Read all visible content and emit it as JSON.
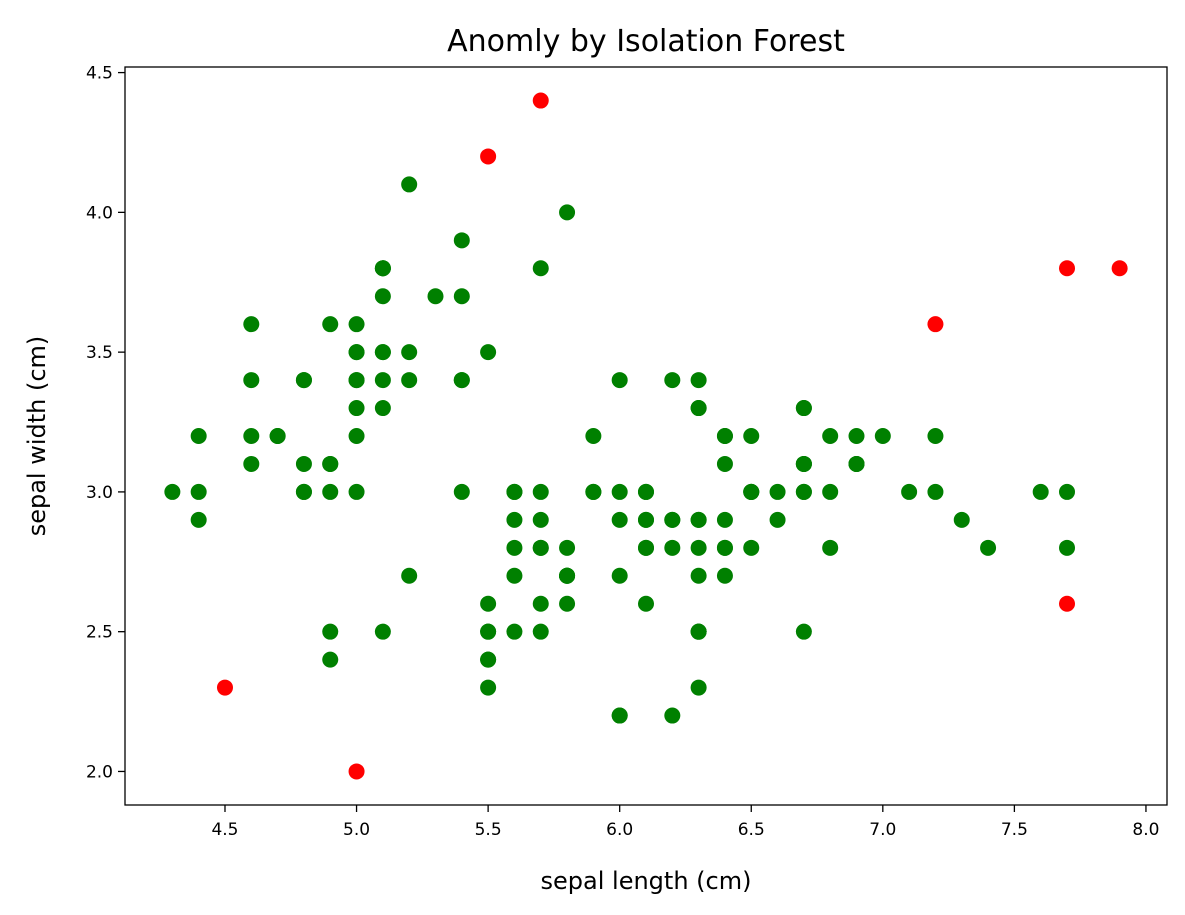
{
  "chart_data": {
    "type": "scatter",
    "title": "Anomly by Isolation Forest",
    "xlabel": "sepal length (cm)",
    "ylabel": "sepal width (cm)",
    "xlim": [
      4.12,
      8.08
    ],
    "ylim": [
      1.88,
      4.52
    ],
    "xticks": [
      "4.5",
      "5.0",
      "5.5",
      "6.0",
      "6.5",
      "7.0",
      "7.5",
      "8.0"
    ],
    "yticks": [
      "2.0",
      "2.5",
      "3.0",
      "3.5",
      "4.0",
      "4.5"
    ],
    "grid": false,
    "legend": "none",
    "series": [
      {
        "color": "#008000",
        "points": [
          [
            5.1,
            3.5
          ],
          [
            4.9,
            3.0
          ],
          [
            4.7,
            3.2
          ],
          [
            4.6,
            3.1
          ],
          [
            5.0,
            3.6
          ],
          [
            5.4,
            3.9
          ],
          [
            4.6,
            3.4
          ],
          [
            5.0,
            3.4
          ],
          [
            4.4,
            2.9
          ],
          [
            4.9,
            3.1
          ],
          [
            5.4,
            3.7
          ],
          [
            4.8,
            3.4
          ],
          [
            4.8,
            3.0
          ],
          [
            4.3,
            3.0
          ],
          [
            5.8,
            4.0
          ],
          [
            5.1,
            3.5
          ],
          [
            5.7,
            3.8
          ],
          [
            5.1,
            3.8
          ],
          [
            5.4,
            3.4
          ],
          [
            5.1,
            3.7
          ],
          [
            4.6,
            3.6
          ],
          [
            5.1,
            3.3
          ],
          [
            4.8,
            3.4
          ],
          [
            5.0,
            3.0
          ],
          [
            5.0,
            3.4
          ],
          [
            5.2,
            3.5
          ],
          [
            5.2,
            3.4
          ],
          [
            4.7,
            3.2
          ],
          [
            4.8,
            3.1
          ],
          [
            5.4,
            3.4
          ],
          [
            5.2,
            4.1
          ],
          [
            4.9,
            3.1
          ],
          [
            5.0,
            3.2
          ],
          [
            5.5,
            3.5
          ],
          [
            4.9,
            3.6
          ],
          [
            4.4,
            3.0
          ],
          [
            5.1,
            3.4
          ],
          [
            5.0,
            3.5
          ],
          [
            4.4,
            3.2
          ],
          [
            5.0,
            3.5
          ],
          [
            5.1,
            3.8
          ],
          [
            4.8,
            3.0
          ],
          [
            5.1,
            3.8
          ],
          [
            4.6,
            3.2
          ],
          [
            5.3,
            3.7
          ],
          [
            5.0,
            3.3
          ],
          [
            7.0,
            3.2
          ],
          [
            6.4,
            3.2
          ],
          [
            6.9,
            3.1
          ],
          [
            5.5,
            2.3
          ],
          [
            6.5,
            2.8
          ],
          [
            5.7,
            2.8
          ],
          [
            6.3,
            3.3
          ],
          [
            4.9,
            2.4
          ],
          [
            6.6,
            2.9
          ],
          [
            5.2,
            2.7
          ],
          [
            5.9,
            3.0
          ],
          [
            6.0,
            2.2
          ],
          [
            6.1,
            2.9
          ],
          [
            5.6,
            2.9
          ],
          [
            6.7,
            3.1
          ],
          [
            5.6,
            3.0
          ],
          [
            5.8,
            2.7
          ],
          [
            6.2,
            2.2
          ],
          [
            5.6,
            2.5
          ],
          [
            5.9,
            3.2
          ],
          [
            6.1,
            2.8
          ],
          [
            6.3,
            2.5
          ],
          [
            6.1,
            2.8
          ],
          [
            6.4,
            2.9
          ],
          [
            6.6,
            3.0
          ],
          [
            6.8,
            2.8
          ],
          [
            6.7,
            3.0
          ],
          [
            6.0,
            2.9
          ],
          [
            5.7,
            2.6
          ],
          [
            5.5,
            2.4
          ],
          [
            5.5,
            2.4
          ],
          [
            5.8,
            2.7
          ],
          [
            6.0,
            2.7
          ],
          [
            5.4,
            3.0
          ],
          [
            6.0,
            3.4
          ],
          [
            6.7,
            3.1
          ],
          [
            6.3,
            2.3
          ],
          [
            5.6,
            3.0
          ],
          [
            5.5,
            2.5
          ],
          [
            5.5,
            2.6
          ],
          [
            6.1,
            3.0
          ],
          [
            5.8,
            2.6
          ],
          [
            5.6,
            2.7
          ],
          [
            5.7,
            3.0
          ],
          [
            5.7,
            2.9
          ],
          [
            6.2,
            2.9
          ],
          [
            5.1,
            2.5
          ],
          [
            5.7,
            2.8
          ],
          [
            6.3,
            3.3
          ],
          [
            5.8,
            2.7
          ],
          [
            7.1,
            3.0
          ],
          [
            6.3,
            2.9
          ],
          [
            6.5,
            3.0
          ],
          [
            7.6,
            3.0
          ],
          [
            4.9,
            2.5
          ],
          [
            7.3,
            2.9
          ],
          [
            6.7,
            2.5
          ],
          [
            6.5,
            3.2
          ],
          [
            6.4,
            2.7
          ],
          [
            6.8,
            3.0
          ],
          [
            5.7,
            2.5
          ],
          [
            5.8,
            2.8
          ],
          [
            6.4,
            3.2
          ],
          [
            6.5,
            3.0
          ],
          [
            6.0,
            2.2
          ],
          [
            6.9,
            3.2
          ],
          [
            5.6,
            2.8
          ],
          [
            6.3,
            2.7
          ],
          [
            6.7,
            3.3
          ],
          [
            7.2,
            3.2
          ],
          [
            6.2,
            2.8
          ],
          [
            6.1,
            3.0
          ],
          [
            6.4,
            2.8
          ],
          [
            7.4,
            2.8
          ],
          [
            6.4,
            2.8
          ],
          [
            6.3,
            2.8
          ],
          [
            6.1,
            2.6
          ],
          [
            7.7,
            3.0
          ],
          [
            6.3,
            3.4
          ],
          [
            6.4,
            3.1
          ],
          [
            6.0,
            3.0
          ],
          [
            6.9,
            3.1
          ],
          [
            6.7,
            3.1
          ],
          [
            6.9,
            3.1
          ],
          [
            5.8,
            2.7
          ],
          [
            6.8,
            3.2
          ],
          [
            6.7,
            3.3
          ],
          [
            6.7,
            3.0
          ],
          [
            6.3,
            2.5
          ],
          [
            6.5,
            3.0
          ],
          [
            6.2,
            3.4
          ],
          [
            5.9,
            3.0
          ],
          [
            7.7,
            2.8
          ],
          [
            7.2,
            3.0
          ],
          [
            6.2,
            2.9
          ],
          [
            6.3,
            2.9
          ],
          [
            6.1,
            2.9
          ],
          [
            6.3,
            2.5
          ],
          [
            5.5,
            2.5
          ]
        ]
      },
      {
        "color": "#ff0000",
        "points": [
          [
            5.7,
            4.4
          ],
          [
            5.5,
            4.2
          ],
          [
            5.0,
            2.0
          ],
          [
            4.5,
            2.3
          ],
          [
            7.2,
            3.6
          ],
          [
            7.7,
            3.8
          ],
          [
            7.9,
            3.8
          ],
          [
            7.7,
            2.6
          ]
        ]
      }
    ]
  }
}
